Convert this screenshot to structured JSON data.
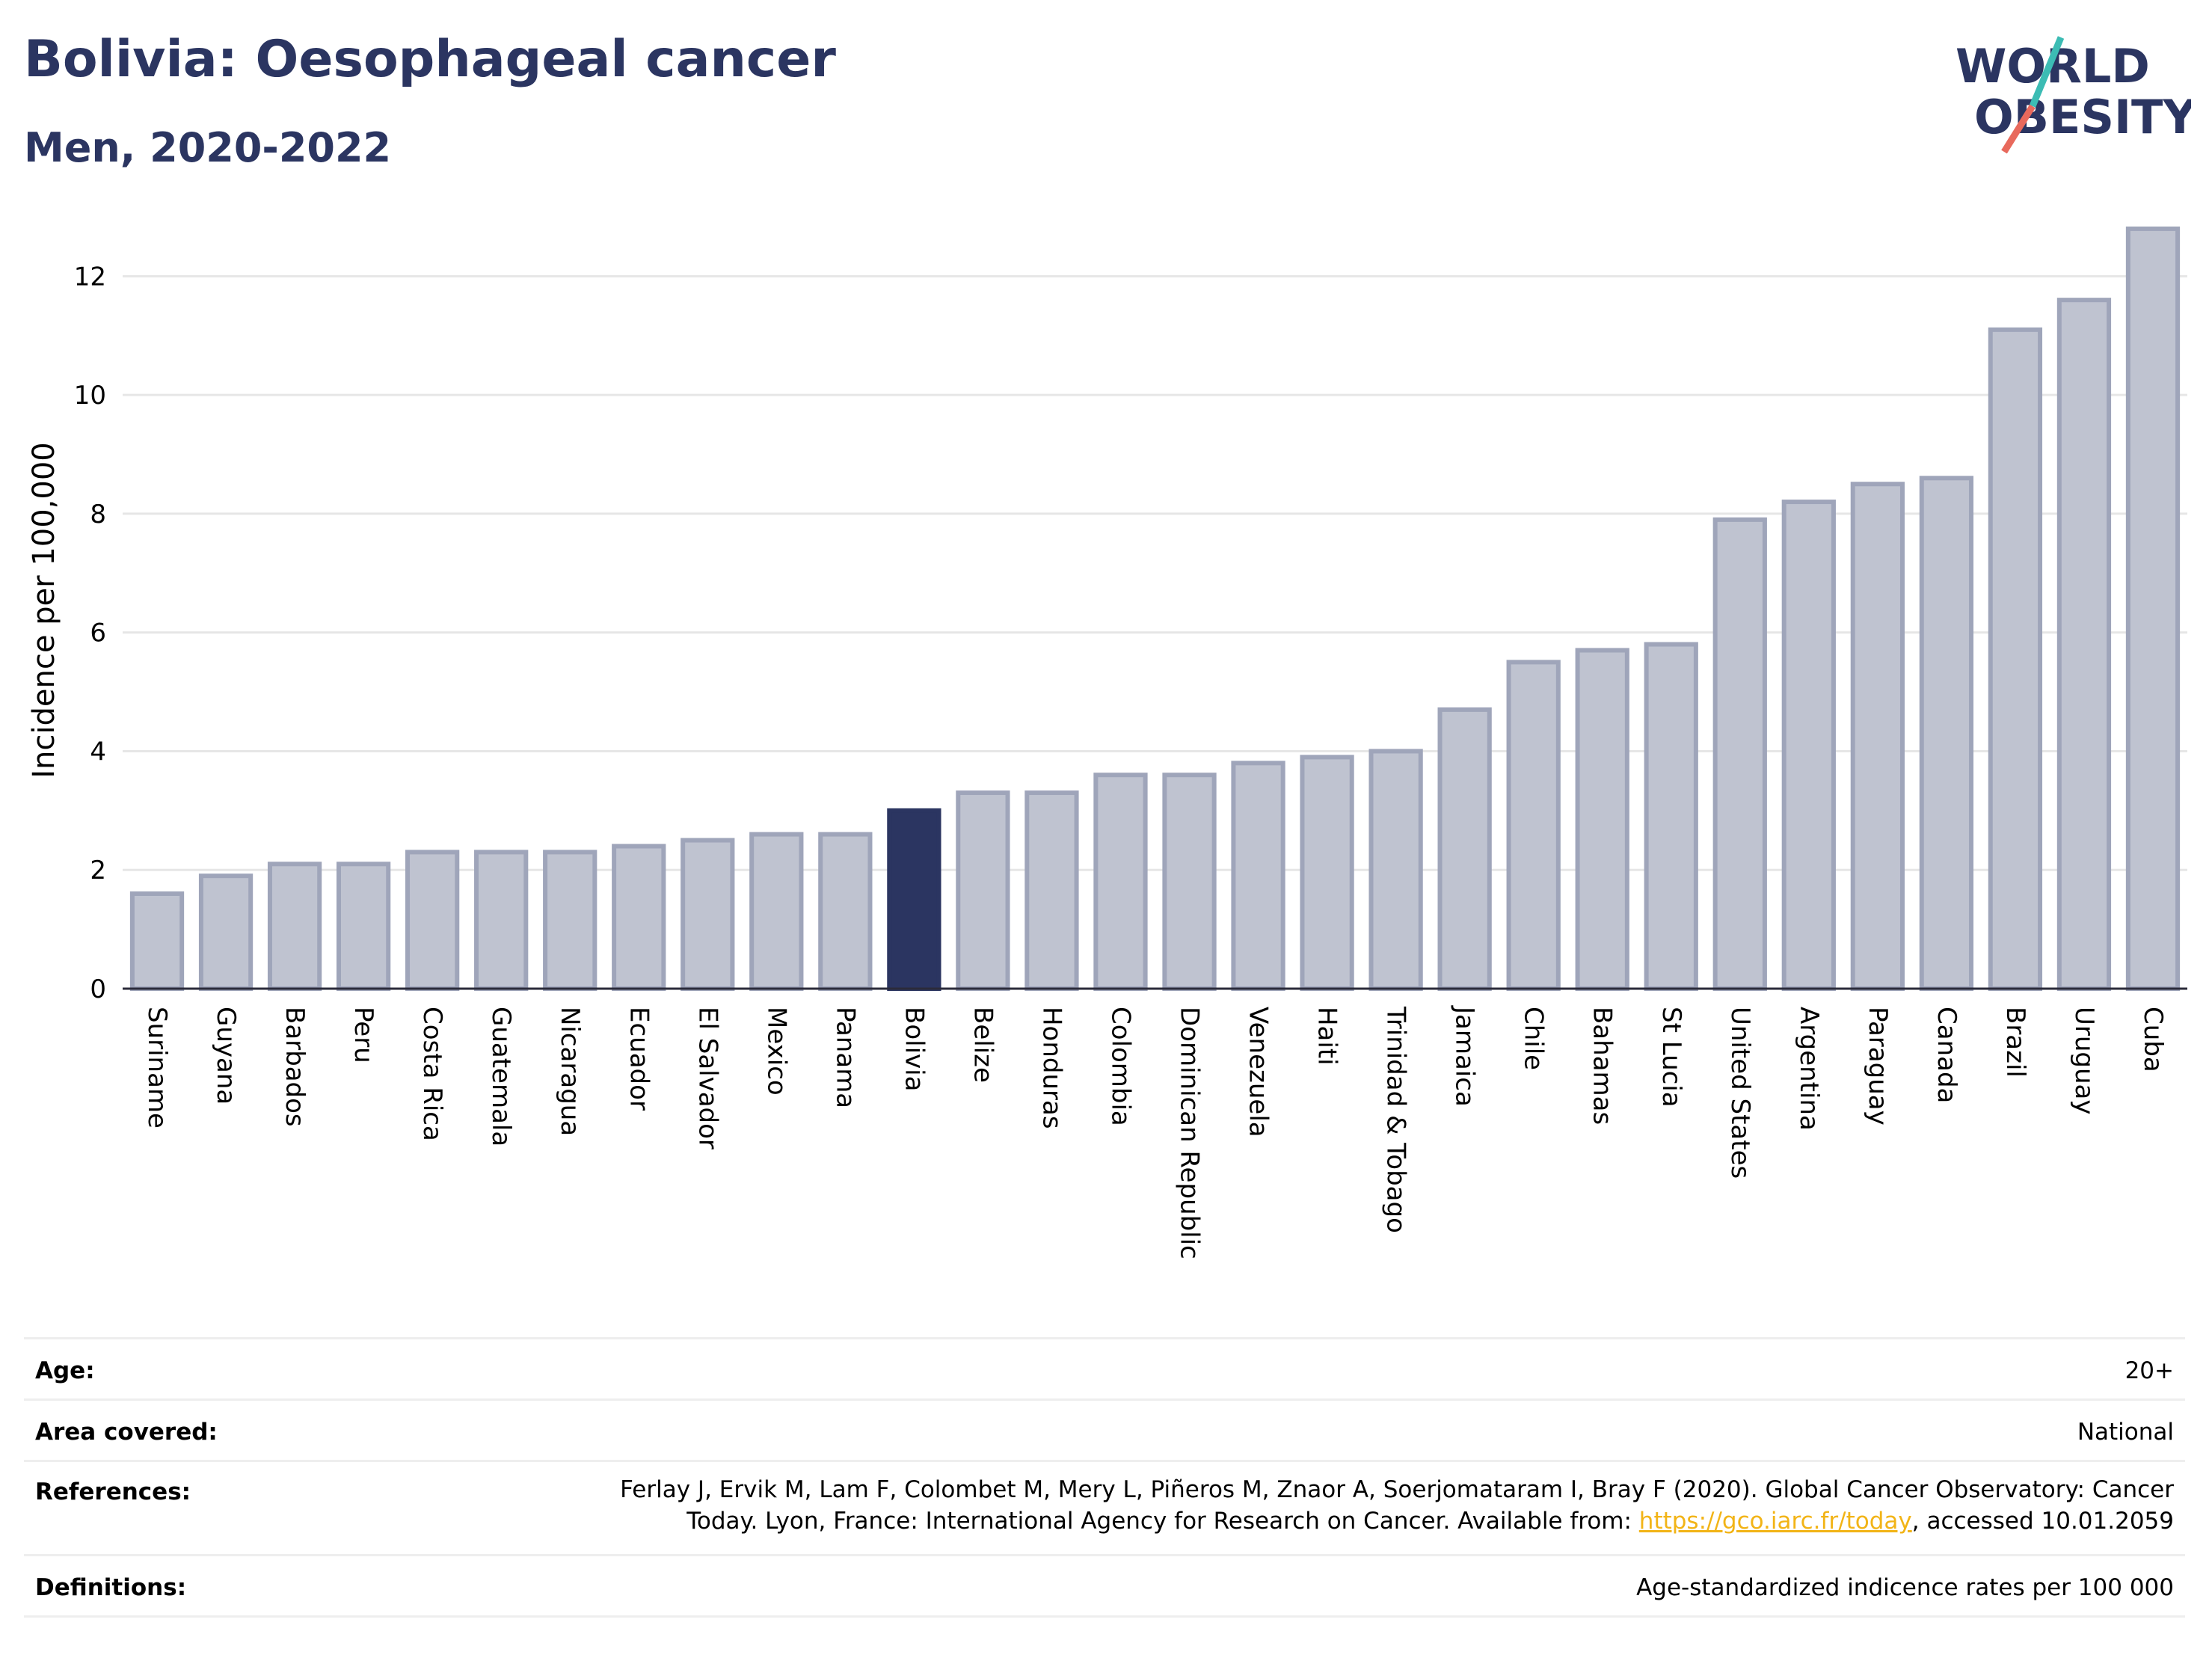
{
  "header": {
    "title": "Bolivia: Oesophageal cancer",
    "subtitle": "Men, 2020-2022"
  },
  "logo": {
    "line1": "WORLD",
    "line2": "OBESITY",
    "name": "world-obesity-logo"
  },
  "colors": {
    "highlight": "#2b3561",
    "bar": "#bfc3d0",
    "bar_stroke": "#9fa5ba",
    "accent_teal": "#3cbcb4",
    "accent_red": "#e8695c"
  },
  "chart_data": {
    "type": "bar",
    "title": "Bolivia: Oesophageal cancer",
    "subtitle": "Men, 2020-2022",
    "xlabel": "",
    "ylabel": "Incidence per 100,000",
    "ylim": [
      0,
      13
    ],
    "yticks": [
      0,
      2,
      4,
      6,
      8,
      10,
      12
    ],
    "grid": true,
    "highlight": "Bolivia",
    "categories": [
      "Suriname",
      "Guyana",
      "Barbados",
      "Peru",
      "Costa Rica",
      "Guatemala",
      "Nicaragua",
      "Ecuador",
      "El Salvador",
      "Mexico",
      "Panama",
      "Bolivia",
      "Belize",
      "Honduras",
      "Colombia",
      "Dominican Republic",
      "Venezuela",
      "Haiti",
      "Trinidad & Tobago",
      "Jamaica",
      "Chile",
      "Bahamas",
      "St Lucia",
      "United States",
      "Argentina",
      "Paraguay",
      "Canada",
      "Brazil",
      "Uruguay",
      "Cuba"
    ],
    "values": [
      1.6,
      1.9,
      2.1,
      2.1,
      2.3,
      2.3,
      2.3,
      2.4,
      2.5,
      2.6,
      2.6,
      3.0,
      3.3,
      3.3,
      3.6,
      3.6,
      3.8,
      3.9,
      4.0,
      4.7,
      5.5,
      5.7,
      5.8,
      7.9,
      8.2,
      8.5,
      8.6,
      11.1,
      11.6,
      12.8
    ]
  },
  "info": {
    "age_label": "Age:",
    "age_value": "20+",
    "area_label": "Area covered:",
    "area_value": "National",
    "references_label": "References:",
    "references_line1": "Ferlay J, Ervik M, Lam F, Colombet M, Mery L, Piñeros M, Znaor A, Soerjomataram I, Bray F (2020). Global Cancer Observatory: Cancer",
    "references_line2a": "Today. Lyon, France: International Agency for Research on Cancer. Available from: ",
    "references_link": "https://gco.iarc.fr/today",
    "references_line2b": ", accessed 10.01.2059",
    "definitions_label": "Definitions:",
    "definitions_value": "Age-standardized indicence rates per 100 000"
  }
}
